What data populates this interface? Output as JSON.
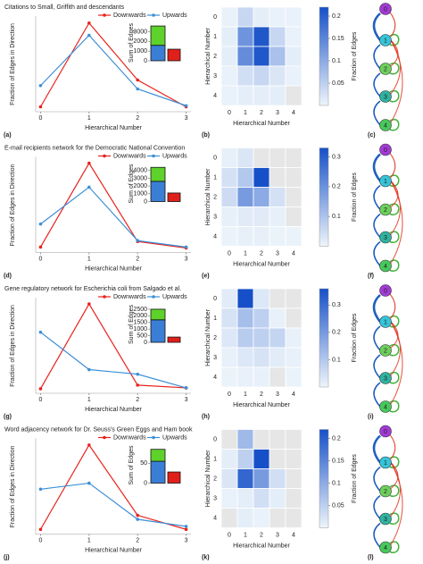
{
  "chart_data": [
    {
      "type": "line",
      "title": "Citations to Small, Griffith and descendants",
      "panel": "(a)",
      "xlabel": "Hierarchical Number",
      "ylabel": "Fraction of Edges in Direction",
      "x": [
        0,
        1,
        2,
        3
      ],
      "xlim": [
        -0.1,
        3.1
      ],
      "xticks": [
        0,
        1,
        2,
        3
      ],
      "ylim": [
        -0.02,
        0.78
      ],
      "legend": "top",
      "series": [
        {
          "name": "Downwards",
          "color": "#e8221c",
          "values": [
            0,
            0.75,
            0.24,
            0
          ]
        },
        {
          "name": "Upwards",
          "color": "#3d8fd6",
          "values": [
            0.19,
            0.64,
            0.16,
            0.01
          ]
        }
      ]
    },
    {
      "type": "bar",
      "ylabel": "Sum of Edges",
      "categories": [
        null,
        null
      ],
      "stacked": true,
      "ylim": [
        0,
        3700
      ],
      "yticks": [
        0,
        1000,
        2000,
        3000
      ],
      "series": [
        {
          "color": "#3a7fd5",
          "values": [
            1600,
            null
          ]
        },
        {
          "color": "#5ed12b",
          "values": [
            2000,
            null
          ]
        },
        {
          "color": "#e0201b",
          "values": [
            null,
            1200
          ]
        }
      ]
    },
    {
      "type": "heatmap",
      "panel": "(b)",
      "xlabel": "Hierarchical Number",
      "ylabel": "Hierarchical Number",
      "colorbar_label": "Fraction of Edges",
      "x": [
        0,
        1,
        2,
        3,
        4
      ],
      "y": [
        0,
        1,
        2,
        3,
        4
      ],
      "clim": [
        0,
        0.22
      ],
      "cticks": [
        0.05,
        0.1,
        0.15,
        0.2
      ],
      "values": [
        [
          0.005,
          0.04,
          0.01,
          0.005,
          0.005
        ],
        [
          0.01,
          0.13,
          0.21,
          0.04,
          0.005
        ],
        [
          0.01,
          0.14,
          0.21,
          0.07,
          0.01
        ],
        [
          0.005,
          0.03,
          0.04,
          0.02,
          0.005
        ],
        [
          0.005,
          0.01,
          0.01,
          0.01,
          null
        ]
      ]
    },
    {
      "type": "line",
      "title": "E-mail recipients network for the Democratic National Convention",
      "panel": "(d)",
      "xlabel": "Hierarchical Number",
      "ylabel": "Fraction of Edges in Direction",
      "x": [
        0,
        1,
        2,
        3
      ],
      "xlim": [
        -0.1,
        3.1
      ],
      "xticks": [
        0,
        1,
        2,
        3
      ],
      "ylim": [
        -0.02,
        0.95
      ],
      "legend": "top",
      "series": [
        {
          "name": "Downwards",
          "color": "#e8221c",
          "values": [
            0.01,
            0.92,
            0.07,
            0
          ]
        },
        {
          "name": "Upwards",
          "color": "#3d8fd6",
          "values": [
            0.26,
            0.66,
            0.08,
            0.01
          ]
        }
      ]
    },
    {
      "type": "bar",
      "ylabel": "Sum of Edges",
      "categories": [
        null,
        null
      ],
      "stacked": true,
      "ylim": [
        0,
        4600
      ],
      "yticks": [
        0,
        1000,
        2000,
        3000,
        4000
      ],
      "series": [
        {
          "color": "#3a7fd5",
          "values": [
            2600,
            null
          ]
        },
        {
          "color": "#5ed12b",
          "values": [
            1800,
            null
          ]
        },
        {
          "color": "#e0201b",
          "values": [
            null,
            1100
          ]
        }
      ]
    },
    {
      "type": "heatmap",
      "panel": "(e)",
      "xlabel": "Hierarchical Number",
      "ylabel": "Hierarchical Number",
      "colorbar_label": "Fraction of Edges",
      "x": [
        0,
        1,
        2,
        3,
        4
      ],
      "y": [
        0,
        1,
        2,
        3,
        4
      ],
      "clim": [
        0,
        0.33
      ],
      "cticks": [
        0.1,
        0.2,
        0.3
      ],
      "values": [
        [
          0.01,
          0.03,
          null,
          null,
          null
        ],
        [
          0.04,
          0.09,
          0.33,
          null,
          null
        ],
        [
          0.05,
          0.18,
          0.15,
          0.04,
          null
        ],
        [
          0.01,
          0.02,
          0.02,
          0.01,
          null
        ],
        [
          0.005,
          0.01,
          0.01,
          0.005,
          0.005
        ]
      ]
    },
    {
      "type": "line",
      "title": "Gene regulatory network for Escherichia coli from Salgado et al.",
      "panel": "(g)",
      "xlabel": "Hierarchical Number",
      "ylabel": "Fraction of Edges in Direction",
      "x": [
        0,
        1,
        2,
        3
      ],
      "xlim": [
        -0.1,
        3.1
      ],
      "xticks": [
        0,
        1,
        2,
        3
      ],
      "ylim": [
        -0.02,
        0.96
      ],
      "legend": "top",
      "series": [
        {
          "name": "Downwards",
          "color": "#e8221c",
          "values": [
            0,
            0.93,
            0.04,
            0.01
          ]
        },
        {
          "name": "Upwards",
          "color": "#3d8fd6",
          "values": [
            0.62,
            0.21,
            0.16,
            0.01
          ]
        }
      ]
    },
    {
      "type": "bar",
      "ylabel": "Sum of Edges",
      "categories": [
        null,
        null
      ],
      "stacked": true,
      "ylim": [
        0,
        2700
      ],
      "yticks": [
        0,
        500,
        1000,
        1500,
        2000,
        2500
      ],
      "series": [
        {
          "color": "#3a7fd5",
          "values": [
            1700,
            null
          ]
        },
        {
          "color": "#5ed12b",
          "values": [
            800,
            null
          ]
        },
        {
          "color": "#e0201b",
          "values": [
            null,
            400
          ]
        }
      ]
    },
    {
      "type": "heatmap",
      "panel": "(h)",
      "xlabel": "Hierarchical Number",
      "ylabel": "Hierarchical Number",
      "colorbar_label": "Fraction of Edges",
      "x": [
        0,
        1,
        2,
        3,
        4
      ],
      "y": [
        0,
        1,
        2,
        3,
        4
      ],
      "clim": [
        0,
        0.36
      ],
      "cticks": [
        0.1,
        0.2,
        0.3
      ],
      "values": [
        [
          0.02,
          0.36,
          0.03,
          null,
          null
        ],
        [
          0.04,
          0.12,
          0.08,
          0.01,
          null
        ],
        [
          0.03,
          0.09,
          0.08,
          0.07,
          0.01
        ],
        [
          0.01,
          0.03,
          0.04,
          0.02,
          0.01
        ],
        [
          0.005,
          0.01,
          0.01,
          null,
          0.005
        ]
      ]
    },
    {
      "type": "line",
      "title": "Word adjacency network for Dr. Seuss's Green Eggs and Ham book",
      "panel": "(j)",
      "xlabel": "Hierarchical Number",
      "ylabel": "Fraction of Edges in Direction",
      "x": [
        0,
        1,
        2,
        3
      ],
      "xlim": [
        -0.1,
        3.1
      ],
      "xticks": [
        0,
        1,
        2,
        3
      ],
      "ylim": [
        -0.02,
        0.87
      ],
      "legend": "top",
      "series": [
        {
          "name": "Downwards",
          "color": "#e8221c",
          "values": [
            0,
            0.84,
            0.14,
            0
          ]
        },
        {
          "name": "Upwards",
          "color": "#3d8fd6",
          "values": [
            0.4,
            0.46,
            0.1,
            0.03
          ]
        }
      ]
    },
    {
      "type": "bar",
      "ylabel": "Sum of Edges",
      "categories": [
        null,
        null
      ],
      "stacked": true,
      "ylim": [
        0,
        90
      ],
      "yticks": [
        0,
        50
      ],
      "series": [
        {
          "color": "#3a7fd5",
          "values": [
            55,
            null
          ]
        },
        {
          "color": "#5ed12b",
          "values": [
            30,
            null
          ]
        },
        {
          "color": "#e0201b",
          "values": [
            null,
            28
          ]
        }
      ]
    },
    {
      "type": "heatmap",
      "panel": "(k)",
      "xlabel": "Hierarchical Number",
      "ylabel": "Hierarchical Number",
      "colorbar_label": "Fraction of Edges",
      "x": [
        0,
        1,
        2,
        3,
        4
      ],
      "y": [
        0,
        1,
        2,
        3,
        4
      ],
      "clim": [
        0,
        0.22
      ],
      "cticks": [
        0.05,
        0.1,
        0.15,
        0.2
      ],
      "values": [
        [
          null,
          0.08,
          null,
          null,
          null
        ],
        [
          0.01,
          0.05,
          0.22,
          null,
          null
        ],
        [
          0.02,
          0.19,
          0.12,
          0.03,
          null
        ],
        [
          0.005,
          0.01,
          0.03,
          0.01,
          null
        ],
        [
          null,
          0.01,
          0.005,
          null,
          null
        ]
      ]
    }
  ],
  "diagrams": [
    {
      "panel": "(c)",
      "nodes": [
        "0",
        "1",
        "2",
        "3",
        "4"
      ]
    },
    {
      "panel": "(f)",
      "nodes": [
        "0",
        "1",
        "2",
        "3",
        "4"
      ]
    },
    {
      "panel": "(i)",
      "nodes": [
        "0",
        "1",
        "2",
        "3",
        "4"
      ]
    },
    {
      "panel": "(l)",
      "nodes": [
        "0",
        "1",
        "2",
        "3",
        "4"
      ]
    }
  ]
}
